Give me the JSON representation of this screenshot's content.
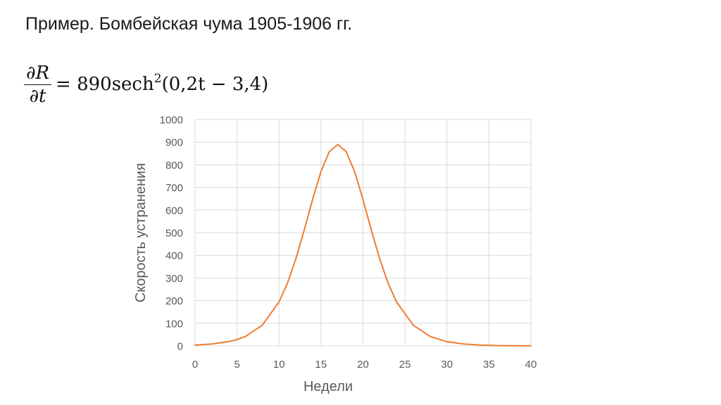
{
  "slide": {
    "title": "Пример. Бомбейская чума 1905-1906 гг."
  },
  "formula": {
    "numerator": "∂R",
    "denominator": "∂t",
    "rhs_before_sup": "= 890sech",
    "superscript": "2",
    "rhs_after_sup": "(0,2t − 3,4)"
  },
  "colors": {
    "series_line": "#ED7D31",
    "gridline": "#D9D9D9",
    "axis_text": "#595959"
  },
  "chart_data": {
    "type": "line",
    "xlabel": "Недели",
    "ylabel": "Скорость устранения",
    "xlim": [
      0,
      40
    ],
    "ylim": [
      0,
      1000
    ],
    "x_ticks": [
      0,
      5,
      10,
      15,
      20,
      25,
      30,
      35,
      40
    ],
    "y_ticks": [
      0,
      100,
      200,
      300,
      400,
      500,
      600,
      700,
      800,
      900,
      1000
    ],
    "grid": true,
    "legend": "none",
    "series": [
      {
        "color": "#ED7D31",
        "x": [
          0,
          2,
          4,
          5,
          6,
          8,
          10,
          11,
          12,
          13,
          14,
          15,
          16,
          17,
          18,
          19,
          20,
          21,
          22,
          23,
          24,
          26,
          28,
          30,
          32,
          34,
          36,
          38,
          40
        ],
        "y": [
          3.8,
          8.5,
          18.9,
          28.1,
          41.8,
          91.5,
          194.1,
          276.6,
          383.7,
          511.1,
          646.8,
          770.7,
          858.3,
          889.8,
          858.3,
          770.7,
          646.8,
          511.1,
          383.7,
          276.6,
          194.1,
          91.5,
          41.8,
          18.9,
          8.5,
          3.8,
          1.7,
          0.8,
          0.3
        ]
      }
    ]
  }
}
